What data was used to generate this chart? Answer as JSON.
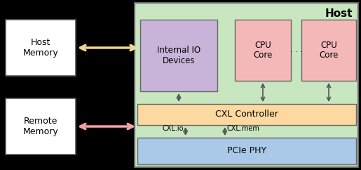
{
  "bg_color": "#000000",
  "host_label": "Host",
  "pcie_label": "PCIe PHY",
  "cxl_ctrl_label": "CXL Controller",
  "io_label": "Internal IO\nDevices",
  "cpu1_label": "CPU\nCore",
  "cpu2_label": "CPU\nCore",
  "host_mem_label": "Host\nMemory",
  "remote_mem_label": "Remote\nMemory",
  "cxlio_label": "CXL.io",
  "cxlmem_label": "CXL.mem",
  "host_bg": "#c8e6c0",
  "pcie_color": "#aac8e8",
  "cxl_color": "#fdd9a0",
  "io_color": "#c8b4d8",
  "cpu_color": "#f5b8b8",
  "mem_color": "#ffffff",
  "arrow_hm_color": "#f0d890",
  "arrow_rm_color": "#f5a0a8",
  "arrow_vert_color": "#555555",
  "edge_color": "#666666"
}
